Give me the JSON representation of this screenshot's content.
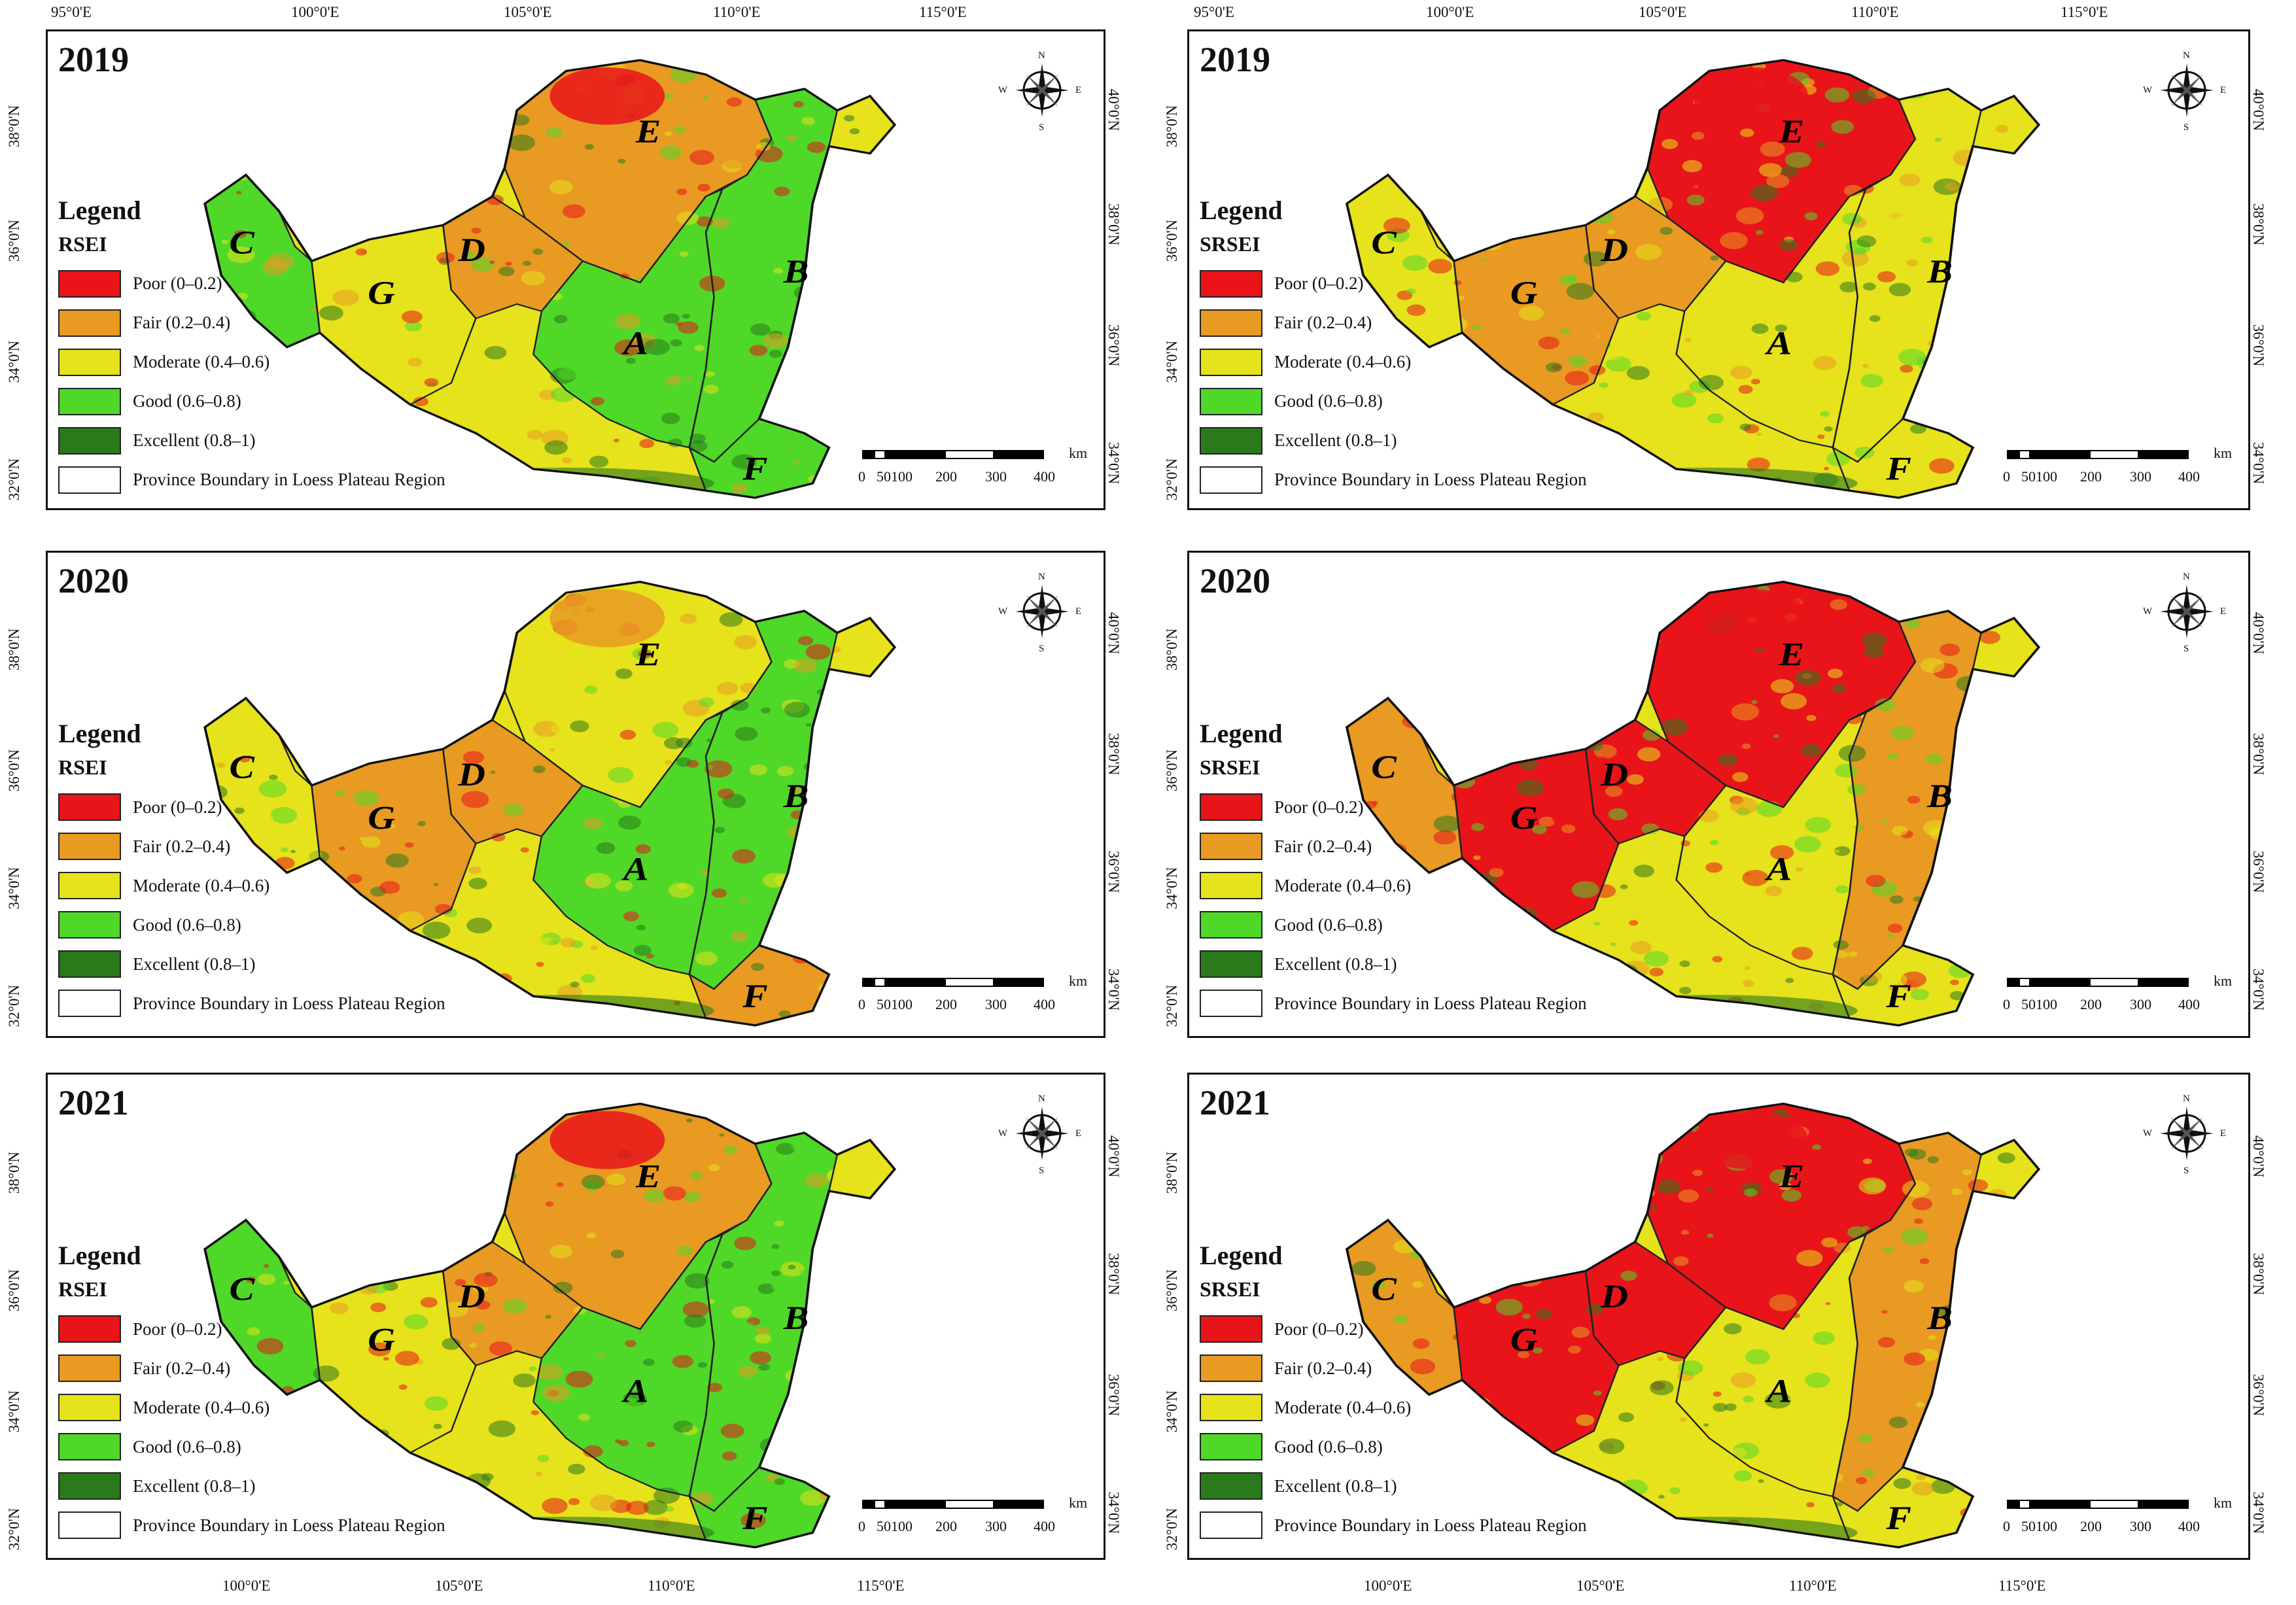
{
  "figure": {
    "top_lon_labels": [
      "95°0'E",
      "100°0'E",
      "105°0'E",
      "110°0'E",
      "115°0'E"
    ],
    "bottom_lon_labels": [
      "100°0'E",
      "105°0'E",
      "110°0'E",
      "115°0'E"
    ],
    "left_lat_labels": [
      "38°0'N",
      "36°0'N",
      "34°0'N",
      "32°0'N"
    ],
    "right_lat_labels": [
      "40°0'N",
      "38°0'N",
      "36°0'N",
      "34°0'N"
    ],
    "inner_left_lat_labels": [
      "38°0'N",
      "36°0'N",
      "34°0'N",
      "32°0'N"
    ],
    "inner_right_lat_labels": [
      "40°0'N",
      "38°0'N",
      "36°0'N",
      "34°0'N"
    ]
  },
  "legend_common": {
    "title": "Legend",
    "classes": [
      {
        "label": "Poor (0–0.2)",
        "color": "#e8141a"
      },
      {
        "label": "Fair (0.2–0.4)",
        "color": "#e89a22"
      },
      {
        "label": "Moderate (0.4–0.6)",
        "color": "#e6e21c"
      },
      {
        "label": "Good (0.6–0.8)",
        "color": "#4fd828"
      },
      {
        "label": "Excellent (0.8–1)",
        "color": "#2a7a1c"
      }
    ],
    "boundary_label": "Province Boundary in Loess Plateau Region"
  },
  "regions": [
    "A",
    "B",
    "C",
    "D",
    "E",
    "F",
    "G"
  ],
  "compass": {
    "n": "N",
    "s": "S",
    "e": "E",
    "w": "W"
  },
  "scale": {
    "ticks": [
      "0",
      "50",
      "100",
      "200",
      "300",
      "400"
    ],
    "unit": "km"
  },
  "panels": [
    {
      "year": "2019",
      "index": "RSEI",
      "E": "#e89a22",
      "D": "#e89a22",
      "G": "#e6e21c",
      "A": "#4fd828",
      "B": "#4fd828",
      "C": "#4fd828",
      "F": "#4fd828",
      "hot": "#e8141a"
    },
    {
      "year": "2019",
      "index": "SRSEI",
      "E": "#e8141a",
      "D": "#e89a22",
      "G": "#e89a22",
      "A": "#e6e21c",
      "B": "#e6e21c",
      "C": "#e6e21c",
      "F": "#e6e21c",
      "hot": "#e8141a"
    },
    {
      "year": "2020",
      "index": "RSEI",
      "E": "#e6e21c",
      "D": "#e89a22",
      "G": "#e89a22",
      "A": "#4fd828",
      "B": "#4fd828",
      "C": "#e6e21c",
      "F": "#e89a22",
      "hot": "#e89a22"
    },
    {
      "year": "2020",
      "index": "SRSEI",
      "E": "#e8141a",
      "D": "#e8141a",
      "G": "#e8141a",
      "A": "#e6e21c",
      "B": "#e89a22",
      "C": "#e89a22",
      "F": "#e6e21c",
      "hot": "#e8141a"
    },
    {
      "year": "2021",
      "index": "RSEI",
      "E": "#e89a22",
      "D": "#e89a22",
      "G": "#e6e21c",
      "A": "#4fd828",
      "B": "#4fd828",
      "C": "#4fd828",
      "F": "#4fd828",
      "hot": "#e8141a"
    },
    {
      "year": "2021",
      "index": "SRSEI",
      "E": "#e8141a",
      "D": "#e8141a",
      "G": "#e8141a",
      "A": "#e6e21c",
      "B": "#e89a22",
      "C": "#e89a22",
      "F": "#e6e21c",
      "hot": "#e8141a"
    }
  ]
}
